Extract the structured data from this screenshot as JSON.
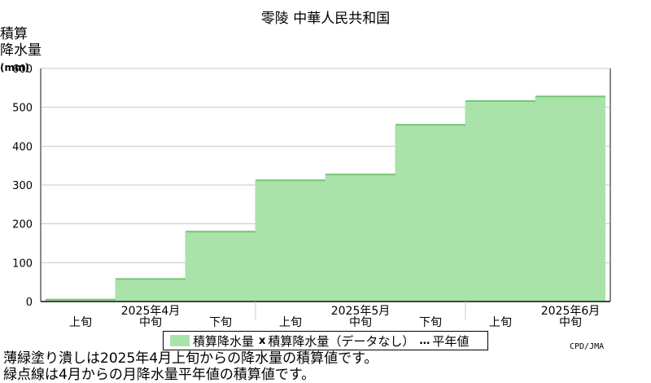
{
  "title": "零陵  中華人民共和国",
  "ylabel": [
    "積算",
    "降水量",
    "(mm)"
  ],
  "legend": {
    "primary": "積算降水量",
    "missing_mark": "x",
    "missing": "積算降水量（データなし）",
    "normal_mark": "…",
    "normal": "平年値"
  },
  "credit": "CPD/JMA",
  "notes": [
    "薄緑塗り潰しは2025年4月上旬からの降水量の積算値です。",
    "緑点線は4月からの月降水量平年値の積算値です。"
  ],
  "colors": {
    "fill": "#a9e3a9",
    "stroke": "#74c474",
    "grid": "#c8c8c8",
    "frame": "#888888"
  },
  "chart_data": {
    "type": "area",
    "title": "零陵  中華人民共和国",
    "ylabel": "積算降水量 (mm)",
    "ylim": [
      0,
      600
    ],
    "yticks": [
      0,
      100,
      200,
      300,
      400,
      500,
      600
    ],
    "grid": true,
    "legend_position": "bottom",
    "categories": [
      "上旬",
      "中旬",
      "下旬",
      "上旬",
      "中旬",
      "下旬",
      "上旬",
      "中旬"
    ],
    "months": [
      {
        "label": "2025年4月",
        "dekads": [
          "上旬",
          "中旬",
          "下旬"
        ]
      },
      {
        "label": "2025年5月",
        "dekads": [
          "上旬",
          "中旬",
          "下旬"
        ]
      },
      {
        "label": "2025年6月",
        "dekads": [
          "上旬",
          "中旬"
        ]
      }
    ],
    "series": [
      {
        "name": "積算降水量",
        "values": [
          5,
          58,
          180,
          312,
          327,
          455,
          516,
          528
        ]
      }
    ]
  }
}
